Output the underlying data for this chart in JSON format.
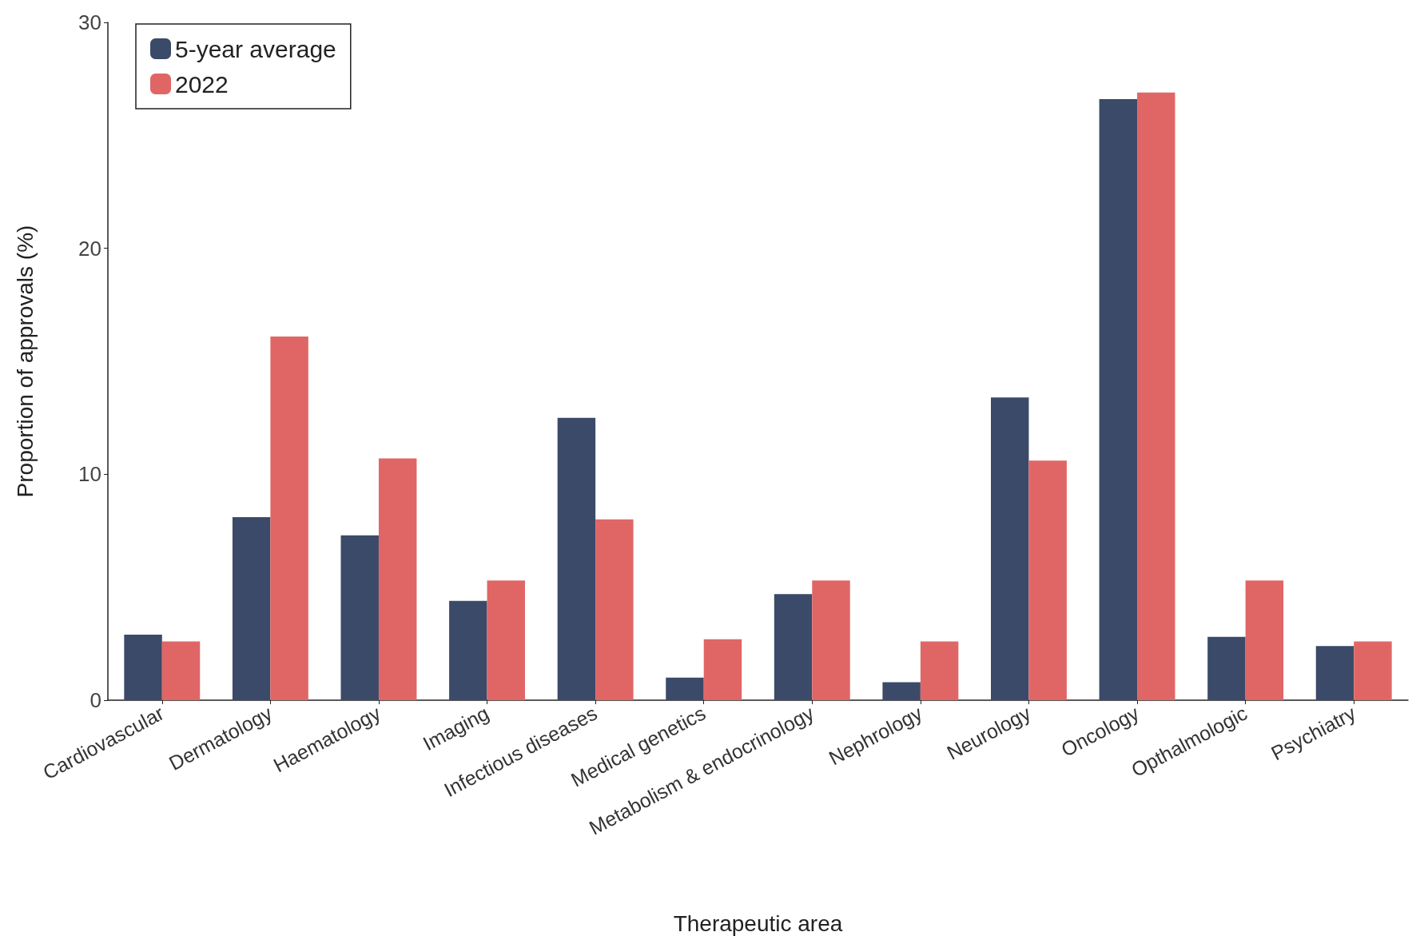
{
  "chart_data": {
    "type": "bar",
    "xlabel": "Therapeutic area",
    "ylabel": "Proportion of approvals (%)",
    "categories": [
      "Cardiovascular",
      "Dermatology",
      "Haematology",
      "Imaging",
      "Infectious diseases",
      "Medical genetics",
      "Metabolism & endocrinology",
      "Nephrology",
      "Neurology",
      "Oncology",
      "Opthalmologic",
      "Psychiatry"
    ],
    "series": [
      {
        "name": "5-year average",
        "color": "#3b4a68",
        "values": [
          2.9,
          8.1,
          7.3,
          4.4,
          12.5,
          1.0,
          4.7,
          0.8,
          13.4,
          26.6,
          2.8,
          2.4
        ]
      },
      {
        "name": "2022",
        "color": "#e06666",
        "values": [
          2.6,
          16.1,
          10.7,
          5.3,
          8.0,
          2.7,
          5.3,
          2.6,
          10.6,
          26.9,
          5.3,
          2.6
        ]
      }
    ],
    "ylim": [
      0,
      30
    ],
    "yticks": [
      0,
      10,
      20,
      30
    ],
    "grid": false,
    "legend": "top left"
  }
}
